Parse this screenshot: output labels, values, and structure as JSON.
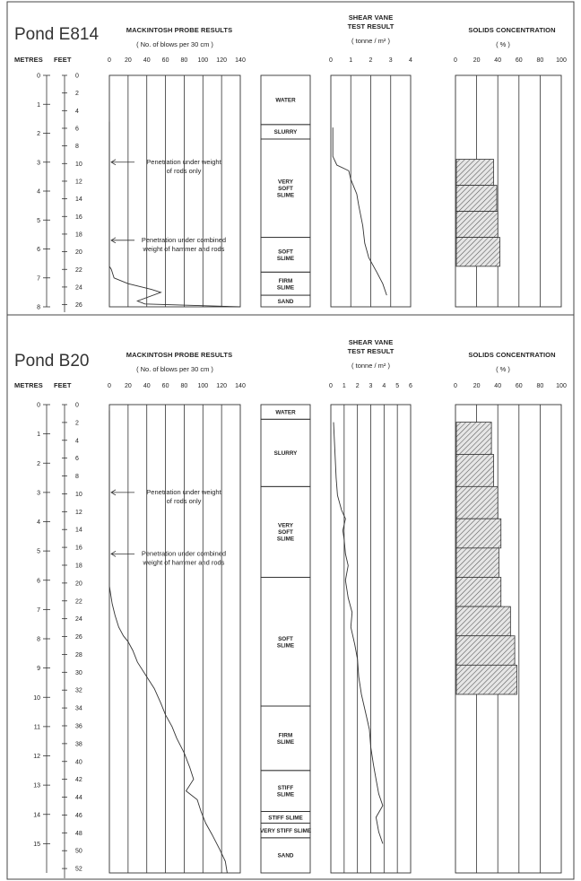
{
  "chart_data": [
    {
      "pond": "Pond E814",
      "depth_axis": {
        "metres_label": "METRES",
        "feet_label": "FEET",
        "max_m": 8,
        "metres_ticks": [
          "0",
          "1",
          "2",
          "3",
          "4",
          "5",
          "6",
          "7",
          "8"
        ],
        "feet_ticks": [
          "0",
          "2",
          "4",
          "6",
          "8",
          "10",
          "12",
          "14",
          "16",
          "18",
          "20",
          "22",
          "24",
          "26"
        ]
      },
      "probe": {
        "title": "MACKINTOSH PROBE RESULTS",
        "subtitle": "( No. of blows per 30 cm )",
        "range": [
          0,
          140
        ],
        "ticks": [
          "0",
          "20",
          "40",
          "60",
          "80",
          "100",
          "120",
          "140"
        ],
        "type": "line",
        "points": [
          [
            0,
            1.6
          ],
          [
            0,
            6.6
          ],
          [
            2,
            6.7
          ],
          [
            5,
            7.0
          ],
          [
            20,
            7.2
          ],
          [
            45,
            7.4
          ],
          [
            55,
            7.5
          ],
          [
            30,
            7.8
          ],
          [
            38,
            7.9
          ],
          [
            140,
            8.0
          ]
        ]
      },
      "layers": [
        {
          "label": "WATER",
          "top": 0,
          "bottom": 1.7
        },
        {
          "label": "SLURRY",
          "top": 1.7,
          "bottom": 2.2
        },
        {
          "label": "VERY SOFT SLIME",
          "top": 2.2,
          "bottom": 5.6
        },
        {
          "label": "SOFT SLIME",
          "top": 5.6,
          "bottom": 6.8
        },
        {
          "label": "FIRM SLIME",
          "top": 6.8,
          "bottom": 7.6
        },
        {
          "label": "SAND",
          "top": 7.6,
          "bottom": 8.0
        }
      ],
      "vane": {
        "title": "SHEAR VANE",
        "title2": "TEST RESULT",
        "subtitle": "( tonne / m² )",
        "range": [
          0,
          4
        ],
        "ticks": [
          "0",
          "1",
          "2",
          "3",
          "4"
        ],
        "type": "line",
        "points": [
          [
            0.1,
            1.8
          ],
          [
            0.1,
            2.8
          ],
          [
            0.3,
            3.1
          ],
          [
            0.9,
            3.3
          ],
          [
            1.0,
            3.6
          ],
          [
            1.3,
            4.1
          ],
          [
            1.4,
            4.5
          ],
          [
            1.6,
            5.2
          ],
          [
            1.7,
            5.8
          ],
          [
            1.9,
            6.3
          ],
          [
            2.3,
            6.8
          ],
          [
            2.6,
            7.2
          ],
          [
            2.8,
            7.6
          ]
        ]
      },
      "solids": {
        "title": "SOLIDS CONCENTRATION",
        "subtitle": "( % )",
        "range": [
          0,
          100
        ],
        "ticks": [
          "0",
          "20",
          "40",
          "60",
          "80",
          "100"
        ],
        "type": "bar",
        "bars": [
          {
            "top": 2.9,
            "bottom": 3.8,
            "value": 36
          },
          {
            "top": 3.8,
            "bottom": 4.7,
            "value": 39
          },
          {
            "top": 4.7,
            "bottom": 5.6,
            "value": 40
          },
          {
            "top": 5.6,
            "bottom": 6.6,
            "value": 42
          }
        ]
      },
      "annotations": [
        {
          "lines": [
            "Penetration under weight",
            "of rods only"
          ],
          "depth": 3.0
        },
        {
          "lines": [
            "Penetration under combined",
            "weight of hammer and rods"
          ],
          "depth": 5.7
        }
      ]
    },
    {
      "pond": "Pond B20",
      "depth_axis": {
        "metres_label": "METRES",
        "feet_label": "FEET",
        "max_m": 16,
        "metres_ticks": [
          "0",
          "1",
          "2",
          "3",
          "4",
          "5",
          "6",
          "7",
          "8",
          "9",
          "10",
          "11",
          "12",
          "13",
          "14",
          "15"
        ],
        "feet_ticks": [
          "0",
          "2",
          "4",
          "6",
          "8",
          "10",
          "12",
          "14",
          "16",
          "18",
          "20",
          "22",
          "24",
          "26",
          "28",
          "30",
          "32",
          "34",
          "36",
          "38",
          "40",
          "42",
          "44",
          "46",
          "48",
          "50",
          "52"
        ]
      },
      "probe": {
        "title": "MACKINTOSH PROBE RESULTS",
        "subtitle": "( No. of blows per 30 cm )",
        "range": [
          0,
          140
        ],
        "ticks": [
          "0",
          "20",
          "40",
          "60",
          "80",
          "100",
          "120",
          "140"
        ],
        "type": "line",
        "points": [
          [
            0,
            0.2
          ],
          [
            0,
            6.2
          ],
          [
            3,
            6.8
          ],
          [
            6,
            7.2
          ],
          [
            10,
            7.6
          ],
          [
            15,
            7.9
          ],
          [
            20,
            8.1
          ],
          [
            25,
            8.4
          ],
          [
            30,
            8.8
          ],
          [
            40,
            9.3
          ],
          [
            48,
            9.7
          ],
          [
            55,
            10.2
          ],
          [
            60,
            10.6
          ],
          [
            67,
            11.0
          ],
          [
            72,
            11.4
          ],
          [
            80,
            11.9
          ],
          [
            86,
            12.4
          ],
          [
            90,
            12.8
          ],
          [
            82,
            13.2
          ],
          [
            94,
            13.5
          ],
          [
            98,
            13.9
          ],
          [
            103,
            14.3
          ],
          [
            110,
            14.7
          ],
          [
            118,
            15.2
          ],
          [
            124,
            15.6
          ],
          [
            126,
            16.0
          ]
        ]
      },
      "layers": [
        {
          "label": "WATER",
          "top": 0,
          "bottom": 0.5
        },
        {
          "label": "SLURRY",
          "top": 0.5,
          "bottom": 2.8
        },
        {
          "label": "VERY SOFT SLIME",
          "top": 2.8,
          "bottom": 5.9
        },
        {
          "label": "SOFT SLIME",
          "top": 5.9,
          "bottom": 10.3
        },
        {
          "label": "FIRM SLIME",
          "top": 10.3,
          "bottom": 12.5
        },
        {
          "label": "STIFF SLIME",
          "top": 12.5,
          "bottom": 13.9
        },
        {
          "label": "STIFF SLIME",
          "top": 13.9,
          "bottom": 14.3
        },
        {
          "label": "VERY STIFF SLIME",
          "top": 14.3,
          "bottom": 14.8
        },
        {
          "label": "SAND",
          "top": 14.8,
          "bottom": 16.0
        }
      ],
      "vane": {
        "title": "SHEAR VANE",
        "title2": "TEST RESULT",
        "subtitle": "( tonne / m² )",
        "range": [
          0,
          6
        ],
        "ticks": [
          "0",
          "1",
          "2",
          "3",
          "4",
          "5",
          "6"
        ],
        "type": "line",
        "points": [
          [
            0.2,
            0.6
          ],
          [
            0.4,
            2.5
          ],
          [
            0.5,
            3.1
          ],
          [
            0.8,
            3.6
          ],
          [
            1.1,
            3.9
          ],
          [
            0.9,
            4.3
          ],
          [
            1.0,
            4.6
          ],
          [
            1.1,
            5.1
          ],
          [
            1.3,
            5.5
          ],
          [
            1.1,
            6.0
          ],
          [
            1.3,
            6.6
          ],
          [
            1.6,
            7.1
          ],
          [
            1.5,
            7.6
          ],
          [
            1.8,
            8.2
          ],
          [
            2.0,
            8.7
          ],
          [
            2.1,
            9.3
          ],
          [
            2.3,
            9.9
          ],
          [
            2.6,
            10.5
          ],
          [
            2.9,
            11.1
          ],
          [
            3.0,
            11.7
          ],
          [
            3.2,
            12.3
          ],
          [
            3.4,
            12.8
          ],
          [
            3.6,
            13.3
          ],
          [
            3.9,
            13.7
          ],
          [
            3.4,
            14.1
          ],
          [
            3.6,
            14.6
          ],
          [
            3.9,
            15.0
          ]
        ]
      },
      "solids": {
        "title": "SOLIDS CONCENTRATION",
        "subtitle": "( % )",
        "range": [
          0,
          100
        ],
        "ticks": [
          "0",
          "20",
          "40",
          "60",
          "80",
          "100"
        ],
        "type": "bar",
        "bars": [
          {
            "top": 0.6,
            "bottom": 1.7,
            "value": 34
          },
          {
            "top": 1.7,
            "bottom": 2.8,
            "value": 36
          },
          {
            "top": 2.8,
            "bottom": 3.9,
            "value": 40
          },
          {
            "top": 3.9,
            "bottom": 4.9,
            "value": 43
          },
          {
            "top": 4.9,
            "bottom": 5.9,
            "value": 41
          },
          {
            "top": 5.9,
            "bottom": 6.9,
            "value": 43
          },
          {
            "top": 6.9,
            "bottom": 7.9,
            "value": 52
          },
          {
            "top": 7.9,
            "bottom": 8.9,
            "value": 56
          },
          {
            "top": 8.9,
            "bottom": 9.9,
            "value": 58
          }
        ]
      },
      "annotations": [
        {
          "lines": [
            "Penetration under weight",
            "of rods only"
          ],
          "depth": 3.0
        },
        {
          "lines": [
            "Penetration under combined",
            "weight of hammer and rods"
          ],
          "depth": 5.1
        }
      ]
    }
  ]
}
